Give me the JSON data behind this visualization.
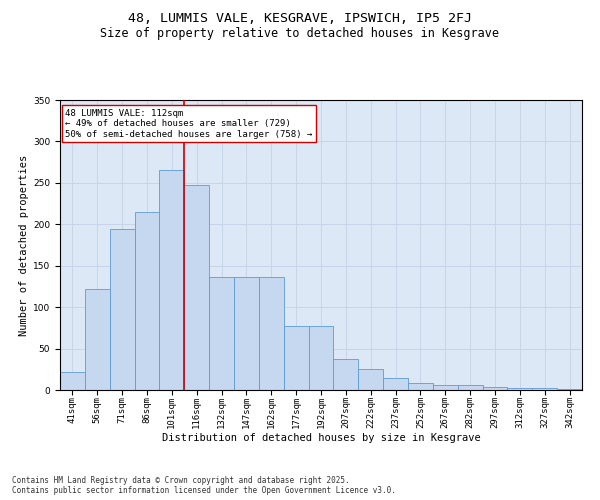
{
  "title1": "48, LUMMIS VALE, KESGRAVE, IPSWICH, IP5 2FJ",
  "title2": "Size of property relative to detached houses in Kesgrave",
  "xlabel": "Distribution of detached houses by size in Kesgrave",
  "ylabel": "Number of detached properties",
  "categories": [
    "41sqm",
    "56sqm",
    "71sqm",
    "86sqm",
    "101sqm",
    "116sqm",
    "132sqm",
    "147sqm",
    "162sqm",
    "177sqm",
    "192sqm",
    "207sqm",
    "222sqm",
    "237sqm",
    "252sqm",
    "267sqm",
    "282sqm",
    "297sqm",
    "312sqm",
    "327sqm",
    "342sqm"
  ],
  "values": [
    22,
    122,
    194,
    215,
    265,
    248,
    136,
    136,
    136,
    77,
    77,
    38,
    25,
    14,
    8,
    6,
    6,
    4,
    2,
    2,
    1
  ],
  "bar_color": "#c5d8f0",
  "bar_edge_color": "#5b9bd5",
  "grid_color": "#c8d4e8",
  "bg_color": "#dce8f5",
  "vline_color": "#cc0000",
  "annotation_text": "48 LUMMIS VALE: 112sqm\n← 49% of detached houses are smaller (729)\n50% of semi-detached houses are larger (758) →",
  "annotation_box_color": "#ffffff",
  "annotation_box_edge": "#cc0000",
  "ylim": [
    0,
    350
  ],
  "yticks": [
    0,
    50,
    100,
    150,
    200,
    250,
    300,
    350
  ],
  "footer": "Contains HM Land Registry data © Crown copyright and database right 2025.\nContains public sector information licensed under the Open Government Licence v3.0.",
  "title_fontsize": 9.5,
  "subtitle_fontsize": 8.5,
  "axis_label_fontsize": 7.5,
  "tick_fontsize": 6.5,
  "annotation_fontsize": 6.5,
  "footer_fontsize": 5.5
}
